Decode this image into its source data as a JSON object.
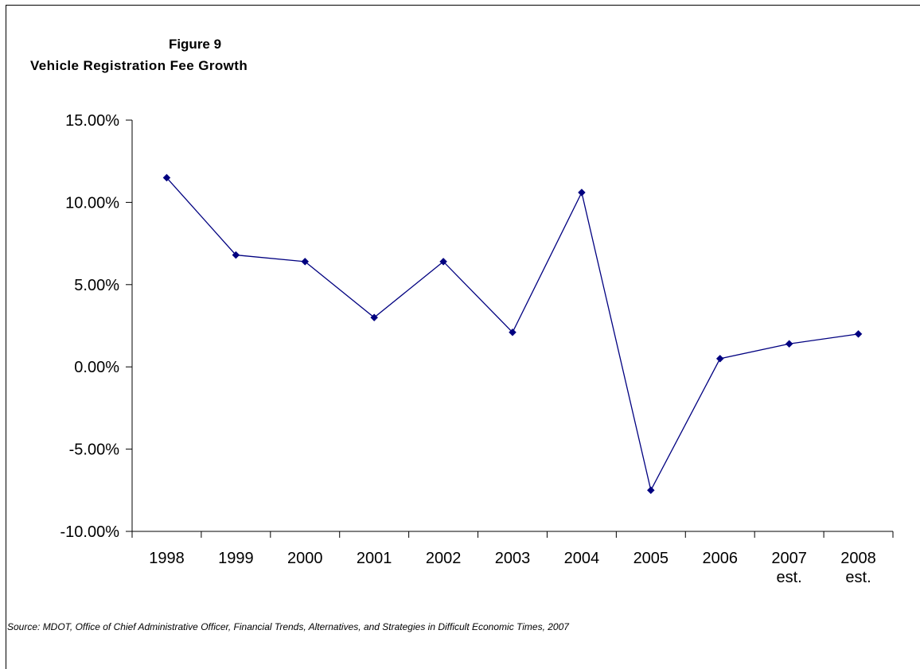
{
  "figure": {
    "title_line1": "Figure 9",
    "title_line2": "Vehicle Registration  Fee Growth",
    "source": "Source: MDOT, Office of Chief Administrative Officer, Financial Trends, Alternatives, and Strategies in Difficult Economic Times, 2007"
  },
  "chart_data": {
    "type": "line",
    "title": "Vehicle Registration  Fee Growth",
    "xlabel": "",
    "ylabel": "",
    "categories": [
      [
        "1998"
      ],
      [
        "1999"
      ],
      [
        "2000"
      ],
      [
        "2001"
      ],
      [
        "2002"
      ],
      [
        "2003"
      ],
      [
        "2004"
      ],
      [
        "2005"
      ],
      [
        "2006"
      ],
      [
        "2007",
        "est."
      ],
      [
        "2008",
        "est."
      ]
    ],
    "series": [
      {
        "values": [
          0.115,
          0.068,
          0.064,
          0.03,
          0.064,
          0.021,
          0.106,
          -0.075,
          0.005,
          0.014,
          0.02
        ],
        "color": "#000080"
      }
    ],
    "ylim": [
      -0.1,
      0.15
    ],
    "yticks": [
      -0.1,
      -0.05,
      0.0,
      0.05,
      0.1,
      0.15
    ],
    "ytick_labels": [
      "-10.00%",
      "-5.00%",
      "0.00%",
      "5.00%",
      "10.00%",
      "15.00%"
    ],
    "grid": false,
    "legend": "none",
    "marker": "diamond"
  }
}
